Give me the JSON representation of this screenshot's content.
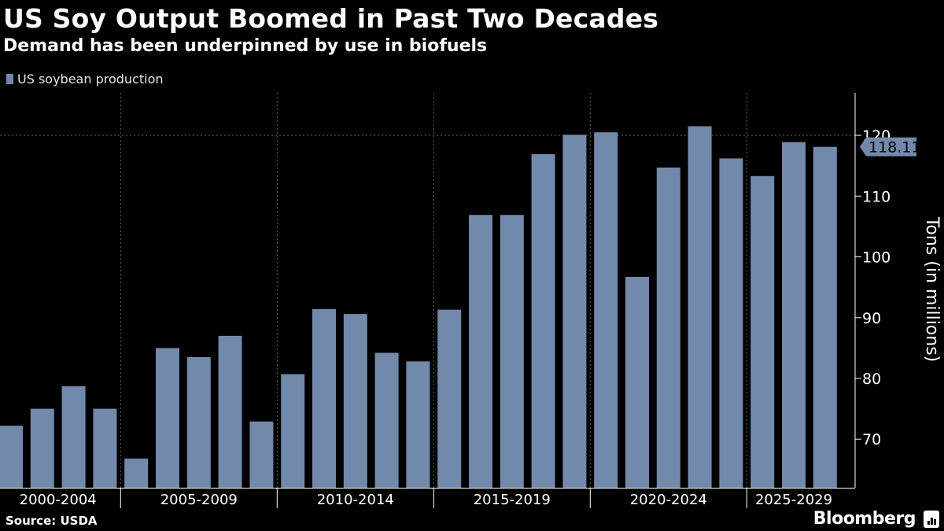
{
  "header": {
    "title": "US Soy Output Boomed in Past Two Decades",
    "subtitle": "Demand has been underpinned by use in biofuels"
  },
  "legend": {
    "label": "US soybean production",
    "color": "#7189aa"
  },
  "footer": {
    "source": "Source: USDA",
    "brand": "Bloomberg",
    "brand_icon": "bloomberg-chart-icon"
  },
  "chart_data": {
    "type": "bar",
    "title": "US Soy Output Boomed in Past Two Decades",
    "subtitle": "Demand has been underpinned by use in biofuels",
    "xlabel": "",
    "ylabel": "Tons (in millions)",
    "ylim": [
      62,
      127
    ],
    "yticks": [
      70,
      80,
      90,
      100,
      110,
      120
    ],
    "axis_side": "right",
    "grid": true,
    "legend_position": "top-left",
    "series": [
      {
        "name": "US soybean production",
        "color": "#7189aa",
        "values": [
          72.2,
          75.0,
          78.7,
          75.0,
          66.8,
          85.0,
          83.5,
          87.0,
          72.9,
          80.7,
          91.4,
          90.6,
          84.2,
          82.8,
          91.3,
          106.9,
          106.9,
          116.9,
          120.1,
          120.5,
          96.7,
          114.7,
          121.5,
          116.2,
          113.3,
          118.9,
          118.11
        ]
      }
    ],
    "year_groups": [
      {
        "label": "2000-2004",
        "start": 0,
        "count": 4
      },
      {
        "label": "2005-2009",
        "start": 4,
        "count": 5
      },
      {
        "label": "2010-2014",
        "start": 9,
        "count": 5
      },
      {
        "label": "2015-2019",
        "start": 14,
        "count": 5
      },
      {
        "label": "2020-2024",
        "start": 19,
        "count": 5
      },
      {
        "label": "2025-2029",
        "start": 24,
        "count": 3
      }
    ],
    "last_value_label": "118.11"
  }
}
